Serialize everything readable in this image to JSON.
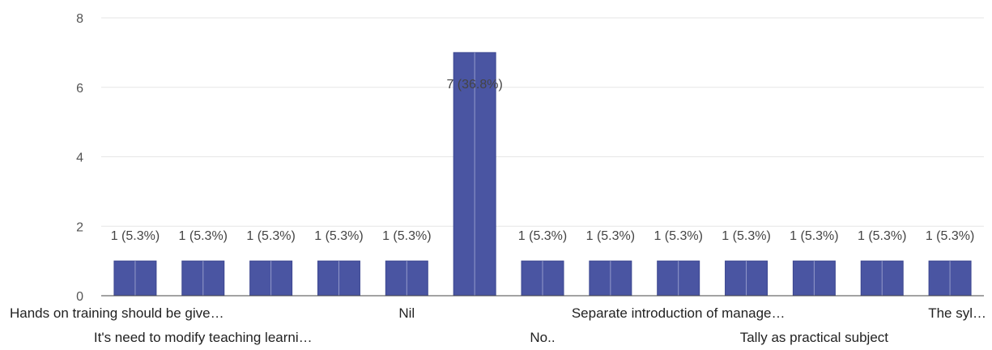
{
  "chart_data": {
    "type": "bar",
    "colors": {
      "bar": "#4a55a2",
      "bar_edge": "#3c4790",
      "bar_divider": "#cfd2ea"
    },
    "categories": [
      "Hands on training should be give…",
      "It's need to modify teaching learni…",
      "",
      "",
      "Nil",
      "",
      "No..",
      "",
      "Separate introduction of manage…",
      "",
      "Tally as practical subject",
      "",
      "The syl…"
    ],
    "values": [
      1,
      1,
      1,
      1,
      1,
      7,
      1,
      1,
      1,
      1,
      1,
      1,
      1
    ],
    "data_labels": [
      "1 (5.3%)",
      "1 (5.3%)",
      "1 (5.3%)",
      "1 (5.3%)",
      "1 (5.3%)",
      "7 (36.8%)",
      "1 (5.3%)",
      "1 (5.3%)",
      "1 (5.3%)",
      "1 (5.3%)",
      "1 (5.3%)",
      "1 (5.3%)",
      "1 (5.3%)"
    ],
    "yticks": [
      0,
      2,
      4,
      6,
      8
    ],
    "ylim": [
      0,
      8
    ],
    "title": "",
    "xlabel": "",
    "ylabel": "",
    "grid": true,
    "legend": "none"
  }
}
